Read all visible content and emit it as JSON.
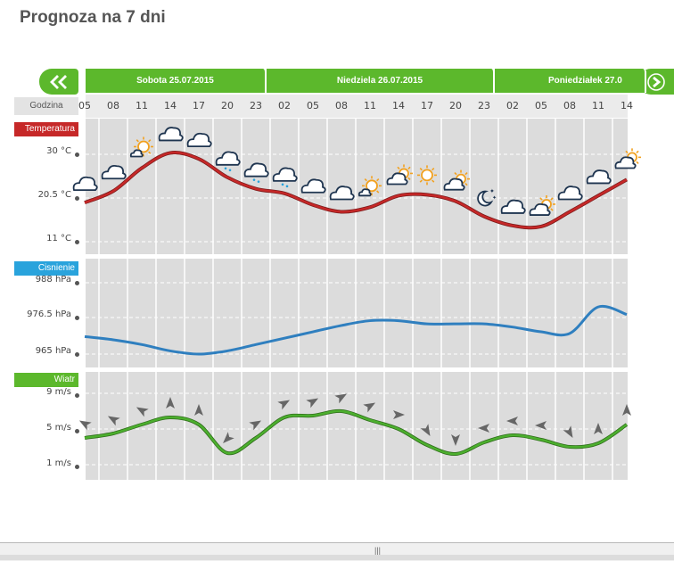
{
  "title": "Prognoza na 7 dni",
  "nav": {
    "prev_icon": "double-chevron-left-icon",
    "next_icon": "chevron-right-icon"
  },
  "days": [
    {
      "label": "Sobota 25.07.2015"
    },
    {
      "label": "Niedziela 26.07.2015"
    },
    {
      "label": "Poniedziałek 27.0"
    }
  ],
  "hours_label": "Godzina",
  "hours": [
    "05",
    "08",
    "11",
    "14",
    "17",
    "20",
    "23",
    "02",
    "05",
    "08",
    "11",
    "14",
    "17",
    "20",
    "23",
    "02",
    "05",
    "08",
    "11",
    "14"
  ],
  "temperature": {
    "label": "Temperatura",
    "ticks": [
      "30 °C",
      "20.5 °C",
      "11 °C"
    ],
    "tick_values": [
      30,
      20.5,
      11
    ],
    "values_c": [
      19.5,
      22,
      27,
      30.3,
      29,
      25,
      22.5,
      21.5,
      19,
      17.5,
      18.5,
      21,
      21.2,
      19.8,
      16.5,
      14.5,
      14.3,
      17.5,
      21,
      24.5
    ],
    "color": "#c62828",
    "icons": [
      "cloud-icon",
      "cloud-icon",
      "partly-sunny-icon",
      "cloud-icon",
      "cloud-icon",
      "rain-cloud-icon",
      "rain-cloud-icon",
      "rain-cloud-icon",
      "cloud-icon",
      "cloud-icon",
      "partly-sunny-icon",
      "partly-cloudy-icon",
      "sun-icon",
      "partly-cloudy-icon",
      "moon-stars-icon",
      "cloud-icon",
      "partly-cloudy-icon",
      "cloud-icon",
      "cloud-icon",
      "partly-cloudy-icon"
    ]
  },
  "pressure": {
    "label": "Cisnienie",
    "ticks": [
      "988 hPa",
      "976.5 hPa",
      "965 hPa"
    ],
    "tick_values": [
      988,
      976.5,
      965
    ],
    "values_hpa": [
      970.5,
      969.5,
      968,
      966,
      965,
      966,
      968,
      970,
      972,
      974,
      975.5,
      975.5,
      974.5,
      974.5,
      974.5,
      973.5,
      972,
      971.5,
      980,
      977.5
    ],
    "color": "#2f7fbf"
  },
  "wind": {
    "label": "Wiatr",
    "ticks": [
      "9 m/s",
      "5 m/s",
      "1 m/s"
    ],
    "tick_values": [
      9,
      5,
      1
    ],
    "values_ms": [
      4,
      4.5,
      5.5,
      6.3,
      5.5,
      2.3,
      4,
      6.3,
      6.5,
      7,
      6,
      5,
      3.2,
      2.2,
      3.5,
      4.3,
      3.8,
      3,
      3.4,
      5.5
    ],
    "arrow_angles": [
      300,
      300,
      300,
      0,
      0,
      225,
      60,
      60,
      60,
      60,
      60,
      90,
      150,
      180,
      270,
      270,
      270,
      150,
      0,
      0
    ],
    "color": "#4caf2e"
  }
}
